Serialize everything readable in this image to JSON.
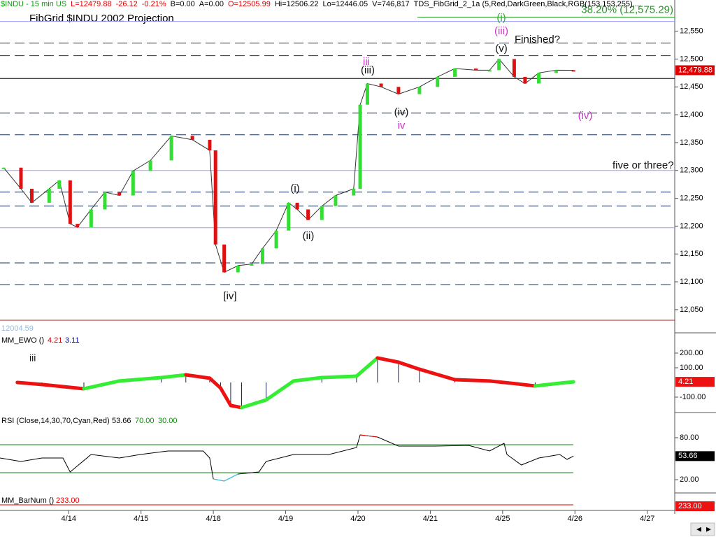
{
  "header": [
    {
      "text": "$INDU - 15 min  US",
      "color": "#119911"
    },
    {
      "text": "L=12479.88",
      "color": "#dd0000"
    },
    {
      "text": "-26.12",
      "color": "#dd0000"
    },
    {
      "text": "-0.21%",
      "color": "#dd0000"
    },
    {
      "text": "B=0.00",
      "color": "#000000"
    },
    {
      "text": "A=0.00",
      "color": "#000000"
    },
    {
      "text": "O=12505.99",
      "color": "#dd0000"
    },
    {
      "text": "Hi=12506.22",
      "color": "#000000"
    },
    {
      "text": "Lo=12446.05",
      "color": "#000000"
    },
    {
      "text": "V=746,817",
      "color": "#000000"
    },
    {
      "text": "TDS_FibGrid_2_1a (5,Red,DarkGreen,Black,RGB(153,153,255),...",
      "color": "#000000"
    }
  ],
  "x_axis": {
    "xlim": [
      0.05,
      9.38
    ],
    "xticks": [
      {
        "value": 1,
        "label": "4/14"
      },
      {
        "value": 2,
        "label": "4/15"
      },
      {
        "value": 3,
        "label": "4/18"
      },
      {
        "value": 4,
        "label": "4/19"
      },
      {
        "value": 5,
        "label": "4/20"
      },
      {
        "value": 6,
        "label": "4/21"
      },
      {
        "value": 7,
        "label": "4/25"
      },
      {
        "value": 8,
        "label": "4/26"
      },
      {
        "value": 9,
        "label": "4/27"
      }
    ]
  },
  "chart_data": [
    {
      "type": "line",
      "title": "FibGrid $INDU 2002 Projection",
      "color": "#333333",
      "up_color": "#33dd33",
      "down_color": "#dd1111",
      "x": [
        0.1,
        0.34,
        0.49,
        0.73,
        0.87,
        1.02,
        1.12,
        1.31,
        1.5,
        1.7,
        1.89,
        2.13,
        2.42,
        2.71,
        2.95,
        3.03,
        3.15,
        3.34,
        3.53,
        3.68,
        3.87,
        4.04,
        4.16,
        4.31,
        4.5,
        4.69,
        4.94,
        5.03,
        5.13,
        5.32,
        5.56,
        5.85,
        6.1,
        6.34,
        6.63,
        6.82,
        6.95,
        7.16,
        7.31,
        7.5,
        7.74,
        7.98
      ],
      "values": [
        12305,
        12267,
        12242,
        12267,
        12282,
        12204,
        12198,
        12230,
        12261,
        12255,
        12299,
        12318,
        12362,
        12355,
        12336,
        12167,
        12117,
        12129,
        12132,
        12160,
        12192,
        12242,
        12230,
        12211,
        12236,
        12255,
        12267,
        12418,
        12456,
        12450,
        12437,
        12450,
        12468,
        12483,
        12480,
        12480,
        12500,
        12468,
        12456,
        12475,
        12480,
        12479.88
      ],
      "ylim": [
        12031,
        12606
      ],
      "yticks": [
        {
          "value": 12050,
          "label": "12,050"
        },
        {
          "value": 12100,
          "label": "12,100"
        },
        {
          "value": 12150,
          "label": "12,150"
        },
        {
          "value": 12200,
          "label": "12,200"
        },
        {
          "value": 12250,
          "label": "12,250"
        },
        {
          "value": 12300,
          "label": "12,300"
        },
        {
          "value": 12350,
          "label": "12,350"
        },
        {
          "value": 12400,
          "label": "12,400"
        },
        {
          "value": 12450,
          "label": "12,450"
        },
        {
          "value": 12500,
          "label": "12,500"
        },
        {
          "value": 12550,
          "label": "12,550"
        }
      ],
      "fib_levels": [
        12528.6,
        12506,
        12403,
        12364,
        12261,
        12236,
        12134,
        12095
      ],
      "fib_color": "#1a3560",
      "purple_levels": [
        12567.6,
        12300,
        12197
      ],
      "purple_color": "#9999ff",
      "black_level": 12465,
      "target": {
        "value": 12575.29,
        "label": "38.20% (12,575.29)",
        "color": "#229922"
      },
      "last": {
        "value": 12479.88,
        "label": "12,479.88"
      },
      "corner_note": "12004.59",
      "annotations": [
        {
          "text": "(i)",
          "color": "#33aa33"
        },
        {
          "text": "(iii)",
          "color": "#cc33cc"
        },
        {
          "text": "Finished?",
          "color": "#111111"
        },
        {
          "text": "(v)",
          "color": "#111111"
        },
        {
          "text": "iii",
          "color": "#cc33cc"
        },
        {
          "text": "(iii)",
          "color": "#111111"
        },
        {
          "text": "(iv)",
          "color": "#111111"
        },
        {
          "text": "iv",
          "color": "#cc33cc"
        },
        {
          "text": "(iv)",
          "color": "#cc33cc"
        },
        {
          "text": "five or three?",
          "color": "#111111"
        },
        {
          "text": "(i)",
          "color": "#111111"
        },
        {
          "text": "(ii)",
          "color": "#111111"
        },
        {
          "text": "[iv]",
          "color": "#111111"
        }
      ]
    },
    {
      "type": "oscillator",
      "label": "MM_EWO ()",
      "up_color": "#33ee33",
      "down_color": "#ee1111",
      "hist_color": "#1a2050",
      "x": [
        0.29,
        0.63,
        1.21,
        1.7,
        2.28,
        2.62,
        2.95,
        3.1,
        3.24,
        3.39,
        3.73,
        4.11,
        4.5,
        4.98,
        5.27,
        5.56,
        5.85,
        6.34,
        6.82,
        7.21,
        7.45,
        7.79,
        7.98
      ],
      "values": [
        0,
        -14,
        -43,
        10,
        33,
        52,
        29,
        -38,
        -157,
        -171,
        -119,
        10,
        33,
        43,
        167,
        138,
        90,
        19,
        10,
        -10,
        -24,
        -5,
        4.21
      ],
      "ylim": [
        -205,
        319
      ],
      "yticks": [
        {
          "value": -100,
          "label": "-100.00"
        },
        {
          "value": 100,
          "label": "100.00"
        },
        {
          "value": 200,
          "label": "200.00"
        }
      ],
      "last": {
        "value": 4.21,
        "label": "4.21",
        "color": "#dd0000"
      },
      "signal": {
        "value": 3.11,
        "label": "3.11",
        "color": "#0000cc"
      },
      "annotation": {
        "text": "iii",
        "color": "#111111"
      }
    },
    {
      "type": "line",
      "label": "RSI (Close,14,30,70,Cyan,Red)",
      "color": "#000000",
      "low_color": "#33ccee",
      "high_color": "#dd0000",
      "x": [
        0.05,
        0.34,
        0.63,
        0.92,
        1.02,
        1.31,
        1.7,
        1.99,
        2.37,
        2.86,
        2.95,
        3.0,
        3.15,
        3.34,
        3.63,
        3.73,
        4.11,
        4.6,
        4.98,
        5.03,
        5.27,
        5.56,
        6.05,
        6.53,
        6.82,
        7.02,
        7.06,
        7.26,
        7.5,
        7.79,
        7.89,
        7.98
      ],
      "values": [
        51,
        46,
        51,
        51,
        31,
        56,
        51,
        56,
        61,
        61,
        51,
        21,
        18,
        28,
        31,
        46,
        56,
        56,
        66,
        84,
        81,
        68,
        68,
        69,
        61,
        72,
        56,
        41,
        51,
        56,
        49,
        53.66
      ],
      "ylim": [
        1,
        113
      ],
      "yticks": [
        {
          "value": 20,
          "label": "20.00"
        },
        {
          "value": 80,
          "label": "80.00"
        }
      ],
      "bands": [
        {
          "value": 70,
          "label": "70.00"
        },
        {
          "value": 30,
          "label": "30.00"
        }
      ],
      "band_color": "#118811",
      "last": {
        "value": 53.66,
        "label": "53.66"
      }
    },
    {
      "type": "level",
      "label": "MM_BarNum ()",
      "color": "#dd0000",
      "last": {
        "value": 233,
        "label": "233.00"
      }
    }
  ]
}
